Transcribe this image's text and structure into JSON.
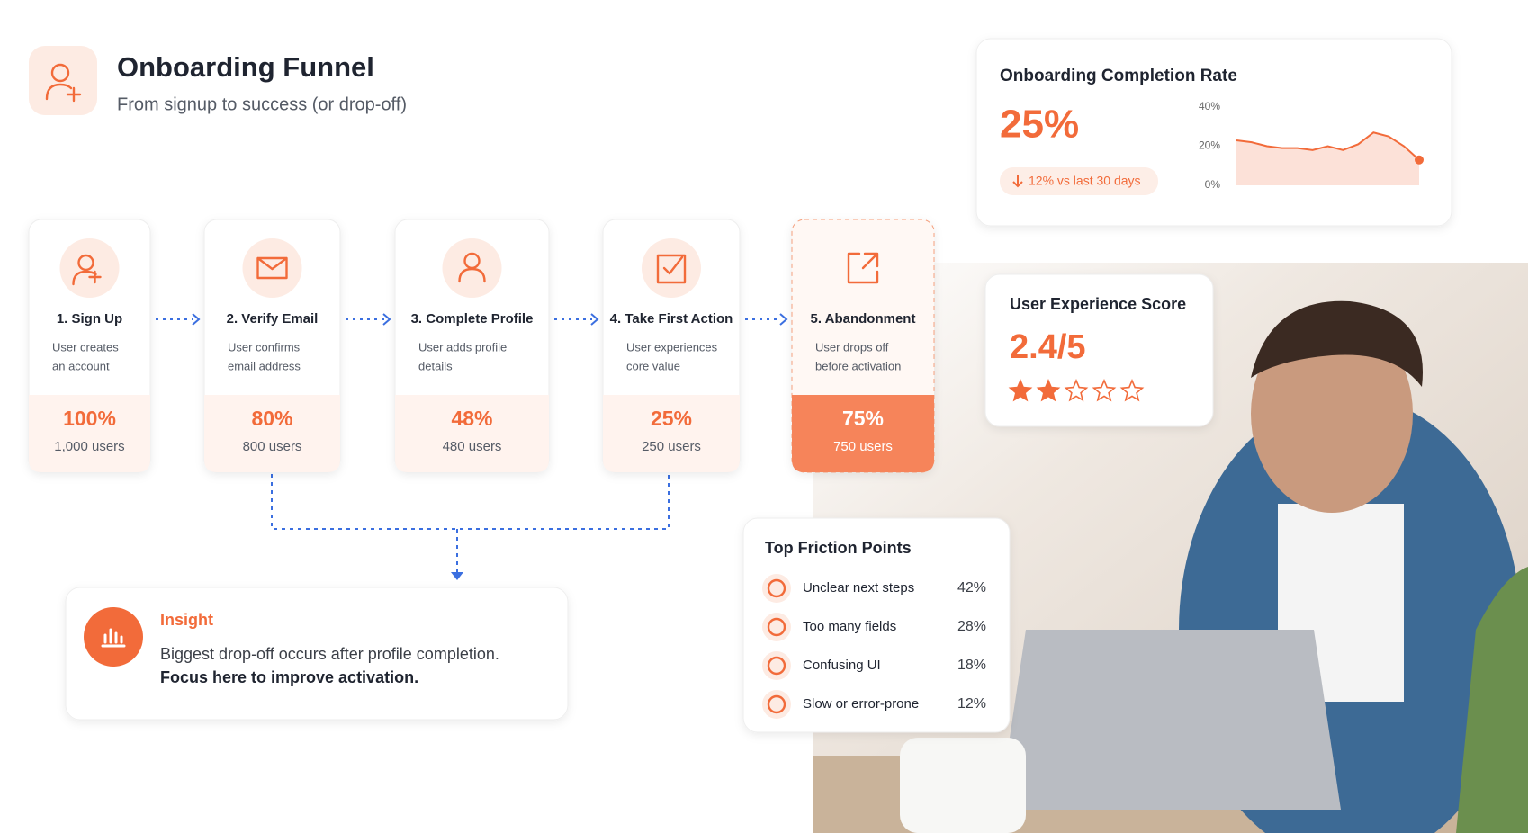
{
  "header": {
    "title": "Onboarding Funnel",
    "subtitle": "From signup to success (or drop-off)"
  },
  "steps": [
    {
      "label": "1. Sign Up",
      "desc": [
        "User creates",
        "an account"
      ],
      "percent": "100%",
      "users": "1,000 users"
    },
    {
      "label": "2. Verify Email",
      "desc": [
        "User confirms",
        "email address"
      ],
      "percent": "80%",
      "users": "800 users"
    },
    {
      "label": "3. Complete Profile",
      "desc": [
        "User adds profile",
        "details"
      ],
      "percent": "48%",
      "users": "480 users"
    },
    {
      "label": "4. Take First Action",
      "desc": [
        "User experiences",
        "core value"
      ],
      "percent": "25%",
      "users": "250 users"
    },
    {
      "label": "5. Abandonment",
      "desc": [
        "User drops off",
        "before activation"
      ],
      "percent": "75%",
      "users": "750 users"
    }
  ],
  "completion": {
    "title": "Onboarding Completion Rate",
    "value": "25%",
    "change": "12% vs last 30 days",
    "chart": {
      "type": "area",
      "color": "#f26b3a",
      "ylim": [
        0,
        40
      ],
      "yticks": [
        {
          "value": 0,
          "label": "0%"
        },
        {
          "value": 20,
          "label": "20%"
        },
        {
          "value": 40,
          "label": "40%"
        }
      ],
      "values": [
        23,
        22,
        20,
        19,
        19,
        18,
        20,
        18,
        21,
        27,
        25,
        20,
        13
      ]
    }
  },
  "ux": {
    "title": "User Experience Score",
    "value": "2.4/5",
    "stars_filled": 2,
    "stars_total": 5
  },
  "insight": {
    "label": "Insight",
    "text": "Biggest drop-off occurs after profile completion.",
    "bold": "Focus here to improve activation."
  },
  "friction": {
    "title": "Top Friction Points",
    "items": [
      {
        "label": "Unclear next steps",
        "value": "42%"
      },
      {
        "label": "Too many fields",
        "value": "28%"
      },
      {
        "label": "Confusing UI",
        "value": "18%"
      },
      {
        "label": "Slow or error-prone",
        "value": "12%"
      }
    ]
  }
}
